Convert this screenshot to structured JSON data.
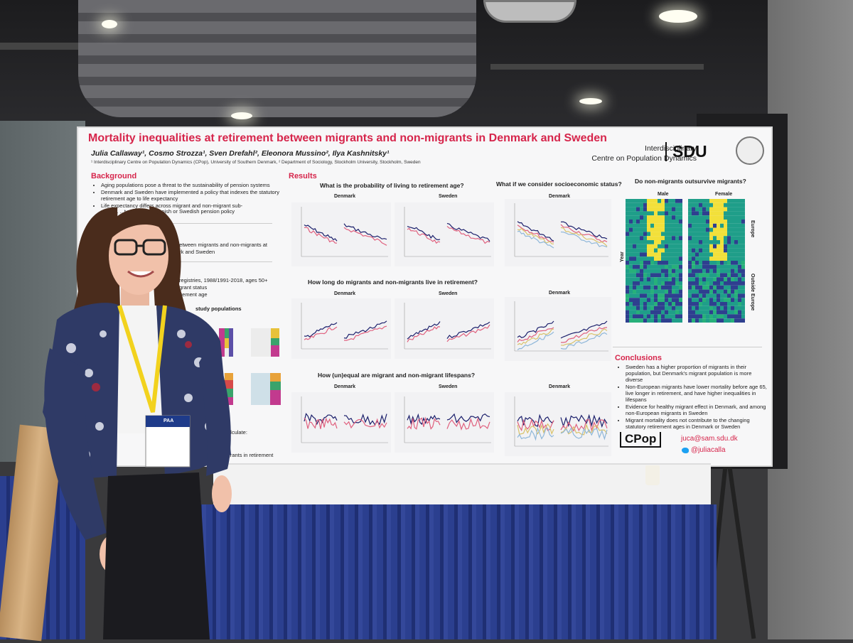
{
  "poster": {
    "title": "Mortality inequalities at retirement between migrants and non-migrants in Denmark and Sweden",
    "authors": "Julia Callaway¹, Cosmo Strozza¹, Sven Drefahl², Eleonora Mussino², Ilya Kashnitsky¹",
    "affiliations": "¹ Interdisciplinary Centre on Population Dynamics (CPop), University of Southern Denmark, ² Department of Sociology, Stockholm University, Stockholm, Sweden",
    "centre_name_line1": "Interdisciplinary",
    "centre_name_line2": "Centre on Population Dynamics",
    "logo_sdu": "SDU",
    "background": {
      "heading": "Background",
      "bullets": [
        "Aging populations pose a threat to the sustainability of pension systems",
        "Denmark and Sweden have implemented a policy that indexes the statutory retirement age to life expectancy",
        "Life expectancy differs across migrant and non-migrant sub-"
      ],
      "bullet_tail": "popul... ...t reflected in Danish or Swedish pension policy"
    },
    "fragments": {
      "aims_1": "between migrants and non-migrants at",
      "aims_2": "ark and Sweden",
      "data_1": "registries, 1988/1991-2018, ages 50+",
      "data_2": "grant status",
      "data_3": "irement age",
      "study_pop": "study populations",
      "calc": "o calculate:",
      "calc_2": "igrants in retirement"
    },
    "results": {
      "heading": "Results",
      "q1": "What is the probability of living to retirement age?",
      "q2": "How long do migrants and non-migrants live in retirement?",
      "q3": "How (un)equal are migrant and non-migrant lifespans?",
      "q4": "What if we consider socioeconomic status?",
      "q5": "Do non-migrants outsurvive migrants?",
      "denmark": "Denmark",
      "sweden": "Sweden",
      "male": "Male",
      "female": "Female",
      "year": "Year",
      "europe": "Europe",
      "outside_europe": "Outside Europe"
    },
    "conclusions": {
      "heading": "Conclusions",
      "bullets": [
        "Sweden has a higher proportion of migrants in their population, but Denmark's migrant population is more diverse",
        "Non-European migrants have lower mortality before age 65, live longer in retirement, and have higher inequalities in lifespans",
        "Evidence for healthy migrant effect in Denmark, and among non-European migrants in Sweden",
        "Migrant mortality does not contribute to the changing statutory retirement ages in Denmark or Sweden"
      ]
    },
    "contact": {
      "logo_cpop": "CPop",
      "email": "juca@sam.sdu.dk",
      "twitter": "@juliacalla"
    }
  },
  "badge": {
    "label": "PAA"
  },
  "colors": {
    "accent": "#d6254b",
    "series_blue": "#1b1f6b",
    "series_pink": "#e0607e",
    "heat_teal": "#1f9e89",
    "heat_yellow": "#f2e03a",
    "heat_navy": "#2e3f8f",
    "table_skirt": "#2b3f8f"
  }
}
